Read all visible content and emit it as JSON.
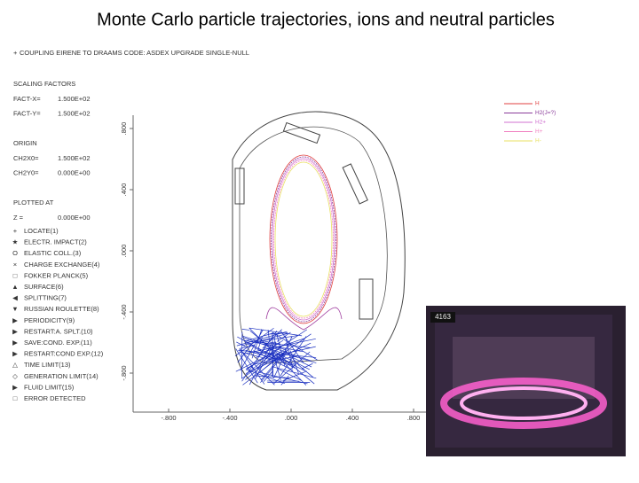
{
  "title": "Monte Carlo particle trajectories, ions and neutral particles",
  "header": "COUPLING EIRENE TO DRAAMS CODE: ASDEX UPGRADE SINGLE-NULL",
  "settings": [
    {
      "heading": "SCALING FACTORS",
      "rows": [
        [
          "FACT-X=",
          "1.500E+02"
        ],
        [
          "FACT-Y=",
          "1.500E+02"
        ]
      ]
    },
    {
      "heading": "ORIGIN",
      "rows": [
        [
          "CH2X0=",
          "1.500E+02"
        ],
        [
          "CH2Y0=",
          "0.000E+00"
        ]
      ]
    },
    {
      "heading": "PLOTTED AT",
      "rows": [
        [
          "Z =",
          "0.000E+00"
        ]
      ]
    }
  ],
  "events": [
    {
      "symbol": "+",
      "label": "LOCATE(1)"
    },
    {
      "symbol": "★",
      "label": "ELECTR. IMPACT(2)"
    },
    {
      "symbol": "O",
      "label": "ELASTIC COLL.(3)"
    },
    {
      "symbol": "×",
      "label": "CHARGE EXCHANGE(4)"
    },
    {
      "symbol": "□",
      "label": "FOKKER PLANCK(5)"
    },
    {
      "symbol": "▲",
      "label": "SURFACE(6)"
    },
    {
      "symbol": "◀",
      "label": "SPLITTING(7)"
    },
    {
      "symbol": "▼",
      "label": "RUSSIAN ROULETTE(8)"
    },
    {
      "symbol": "▶",
      "label": "PERIODICITY(9)"
    },
    {
      "symbol": "▶",
      "label": "RESTART:A. SPLT.(10)"
    },
    {
      "symbol": "▶",
      "label": "SAVE:COND. EXP.(11)"
    },
    {
      "symbol": "▶",
      "label": "RESTART:COND EXP.(12)"
    },
    {
      "symbol": "△",
      "label": "TIME LIMIT(13)"
    },
    {
      "symbol": "◇",
      "label": "GENERATION LIMIT(14)"
    },
    {
      "symbol": "▶",
      "label": "FLUID LIMIT(15)"
    },
    {
      "symbol": "□",
      "label": "ERROR DETECTED"
    }
  ],
  "plot": {
    "yticks": [
      ".800",
      ".400",
      ".000",
      "-.400",
      "-.800"
    ],
    "xticks": [
      "-.800",
      "-.400",
      ".000",
      ".400",
      ".800"
    ],
    "legend": [
      {
        "name": "H",
        "color": "#e04040"
      },
      {
        "name": "H2(J=?)",
        "color": "#8a3c9a"
      },
      {
        "name": "H2+",
        "color": "#d070d0"
      },
      {
        "name": "H+",
        "color": "#f080c0"
      },
      {
        "name": "H-",
        "color": "#e8e060"
      }
    ]
  },
  "photo": {
    "label": "4163"
  }
}
